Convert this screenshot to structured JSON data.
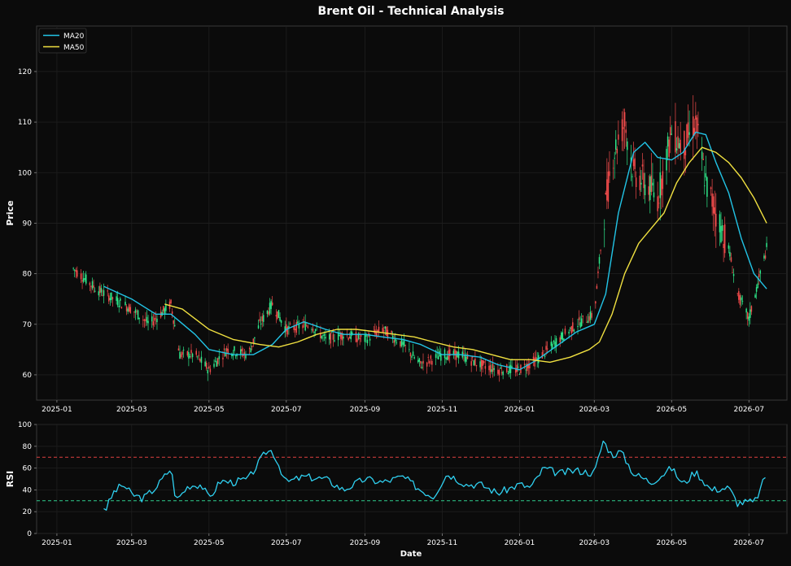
{
  "title": "Brent Oil - Technical Analysis",
  "colors": {
    "background": "#0b0b0b",
    "axes_bg": "#0b0b0b",
    "spine": "#3a3a3a",
    "grid": "#1f1f1f",
    "text": "#ffffff",
    "up": "#2ee88a",
    "down": "#f04b4b",
    "ma20": "#22c4e6",
    "ma50": "#f0e040",
    "rsi": "#2fd0f0",
    "overbought": "#e04040",
    "oversold": "#30d090"
  },
  "x_ticks": [
    "2025-01",
    "2025-03",
    "2025-05",
    "2025-07",
    "2025-09",
    "2025-11",
    "2026-01",
    "2026-03",
    "2026-05",
    "2026-07"
  ],
  "price_panel": {
    "ylabel": "Price",
    "yticks": [
      60,
      70,
      80,
      90,
      100,
      110,
      120
    ],
    "ylim": [
      55,
      129
    ],
    "legend_position": "top-left"
  },
  "rsi_panel": {
    "ylabel": "RSI",
    "xlabel": "Date",
    "yticks": [
      0,
      20,
      40,
      60,
      80,
      100
    ],
    "ylim": [
      0,
      100
    ]
  },
  "chart_data": [
    {
      "type": "line",
      "panel": "price",
      "title": "Brent Oil - Technical Analysis",
      "xlabel": "",
      "ylabel": "Price",
      "xlim": [
        "2024-12-16",
        "2026-07-31"
      ],
      "ylim": [
        55,
        129
      ],
      "candlestick_path": {
        "x": [
          "2025-01-14",
          "2025-02-01",
          "2025-02-15",
          "2025-03-01",
          "2025-03-15",
          "2025-04-01",
          "2025-04-08",
          "2025-04-20",
          "2025-05-01",
          "2025-05-15",
          "2025-06-01",
          "2025-06-10",
          "2025-06-20",
          "2025-07-01",
          "2025-07-20",
          "2025-08-01",
          "2025-08-15",
          "2025-09-01",
          "2025-09-15",
          "2025-10-01",
          "2025-10-15",
          "2025-11-01",
          "2025-11-15",
          "2025-12-01",
          "2025-12-15",
          "2026-01-01",
          "2026-01-15",
          "2026-02-01",
          "2026-02-15",
          "2026-03-01",
          "2026-03-08",
          "2026-03-15",
          "2026-03-25",
          "2026-04-01",
          "2026-04-10",
          "2026-04-20",
          "2026-05-01",
          "2026-05-10",
          "2026-05-20",
          "2026-05-28",
          "2026-06-05",
          "2026-06-15",
          "2026-06-22",
          "2026-07-01",
          "2026-07-08",
          "2026-07-15"
        ],
        "y": [
          81,
          77,
          75,
          73,
          70,
          74,
          64,
          64,
          61,
          65,
          64,
          70,
          74,
          69,
          70,
          67,
          68,
          67,
          69,
          66,
          62,
          64,
          64,
          62,
          61,
          61,
          63,
          67,
          70,
          72,
          90,
          103,
          110,
          100,
          98,
          95,
          108,
          105,
          110,
          98,
          92,
          85,
          76,
          71,
          78,
          85
        ]
      },
      "series": [
        {
          "name": "MA20",
          "x": [
            "2025-02-07",
            "2025-03-01",
            "2025-03-20",
            "2025-04-01",
            "2025-04-20",
            "2025-05-01",
            "2025-05-20",
            "2025-06-05",
            "2025-06-20",
            "2025-07-01",
            "2025-07-15",
            "2025-08-01",
            "2025-08-15",
            "2025-09-01",
            "2025-09-15",
            "2025-10-01",
            "2025-10-15",
            "2025-11-01",
            "2025-11-15",
            "2025-12-01",
            "2025-12-15",
            "2026-01-01",
            "2026-01-15",
            "2026-02-01",
            "2026-02-15",
            "2026-03-01",
            "2026-03-10",
            "2026-03-20",
            "2026-04-01",
            "2026-04-10",
            "2026-04-20",
            "2026-05-01",
            "2026-05-10",
            "2026-05-20",
            "2026-05-28",
            "2026-06-05",
            "2026-06-15",
            "2026-06-25",
            "2026-07-05",
            "2026-07-15"
          ],
          "y": [
            77.5,
            75,
            72,
            72,
            68,
            65,
            64,
            64,
            66,
            69,
            70.5,
            69,
            68,
            68,
            67.5,
            67,
            66,
            64,
            64,
            63.5,
            62,
            61,
            63,
            66,
            68.5,
            70,
            76,
            92,
            104,
            106,
            103,
            102.5,
            104,
            108,
            107.5,
            102,
            96,
            87,
            80,
            77
          ]
        },
        {
          "name": "MA50",
          "x": [
            "2025-03-27",
            "2025-04-10",
            "2025-05-01",
            "2025-05-20",
            "2025-06-10",
            "2025-06-25",
            "2025-07-10",
            "2025-07-25",
            "2025-08-10",
            "2025-08-25",
            "2025-09-10",
            "2025-09-25",
            "2025-10-10",
            "2025-10-25",
            "2025-11-10",
            "2025-11-25",
            "2025-12-10",
            "2025-12-25",
            "2026-01-10",
            "2026-01-25",
            "2026-02-10",
            "2026-02-25",
            "2026-03-05",
            "2026-03-15",
            "2026-03-25",
            "2026-04-05",
            "2026-04-15",
            "2026-04-25",
            "2026-05-05",
            "2026-05-15",
            "2026-05-25",
            "2026-06-05",
            "2026-06-15",
            "2026-06-25",
            "2026-07-05",
            "2026-07-15"
          ],
          "y": [
            74,
            73,
            69,
            67,
            66,
            65.5,
            66.5,
            68,
            69,
            69,
            68.5,
            68,
            67.5,
            66.5,
            65.5,
            65,
            64,
            63,
            63,
            62.5,
            63.5,
            65,
            66.5,
            72,
            80,
            86,
            89,
            92,
            98,
            102,
            105,
            104,
            102,
            99,
            95,
            90
          ]
        }
      ]
    },
    {
      "type": "line",
      "panel": "rsi",
      "xlabel": "Date",
      "ylabel": "RSI",
      "xlim": [
        "2024-12-16",
        "2026-07-31"
      ],
      "ylim": [
        0,
        100
      ],
      "thresholds": [
        70,
        30
      ],
      "series": [
        {
          "name": "RSI",
          "x": [
            "2025-02-07",
            "2025-02-08",
            "2025-02-15",
            "2025-02-22",
            "2025-03-01",
            "2025-03-10",
            "2025-03-20",
            "2025-04-01",
            "2025-04-05",
            "2025-04-15",
            "2025-04-25",
            "2025-05-01",
            "2025-05-10",
            "2025-05-20",
            "2025-06-01",
            "2025-06-15",
            "2025-06-20",
            "2025-07-01",
            "2025-07-15",
            "2025-08-01",
            "2025-08-15",
            "2025-09-01",
            "2025-09-15",
            "2025-10-01",
            "2025-10-15",
            "2025-10-25",
            "2025-11-05",
            "2025-11-20",
            "2025-12-01",
            "2025-12-15",
            "2026-01-01",
            "2026-01-10",
            "2026-01-20",
            "2026-02-01",
            "2026-02-15",
            "2026-03-01",
            "2026-03-08",
            "2026-03-15",
            "2026-03-22",
            "2026-04-01",
            "2026-04-15",
            "2026-05-01",
            "2026-05-10",
            "2026-05-20",
            "2026-06-01",
            "2026-06-15",
            "2026-06-22",
            "2026-07-01",
            "2026-07-05",
            "2026-07-10",
            "2026-07-15"
          ],
          "y": [
            24,
            21,
            38,
            45,
            36,
            32,
            42,
            60,
            30,
            44,
            45,
            32,
            48,
            47,
            50,
            75,
            76,
            47,
            52,
            50,
            40,
            50,
            47,
            52,
            40,
            34,
            55,
            45,
            45,
            37,
            45,
            42,
            60,
            55,
            58,
            55,
            85,
            72,
            75,
            55,
            47,
            60,
            45,
            57,
            40,
            42,
            28,
            29,
            28,
            40,
            56
          ]
        }
      ]
    }
  ]
}
